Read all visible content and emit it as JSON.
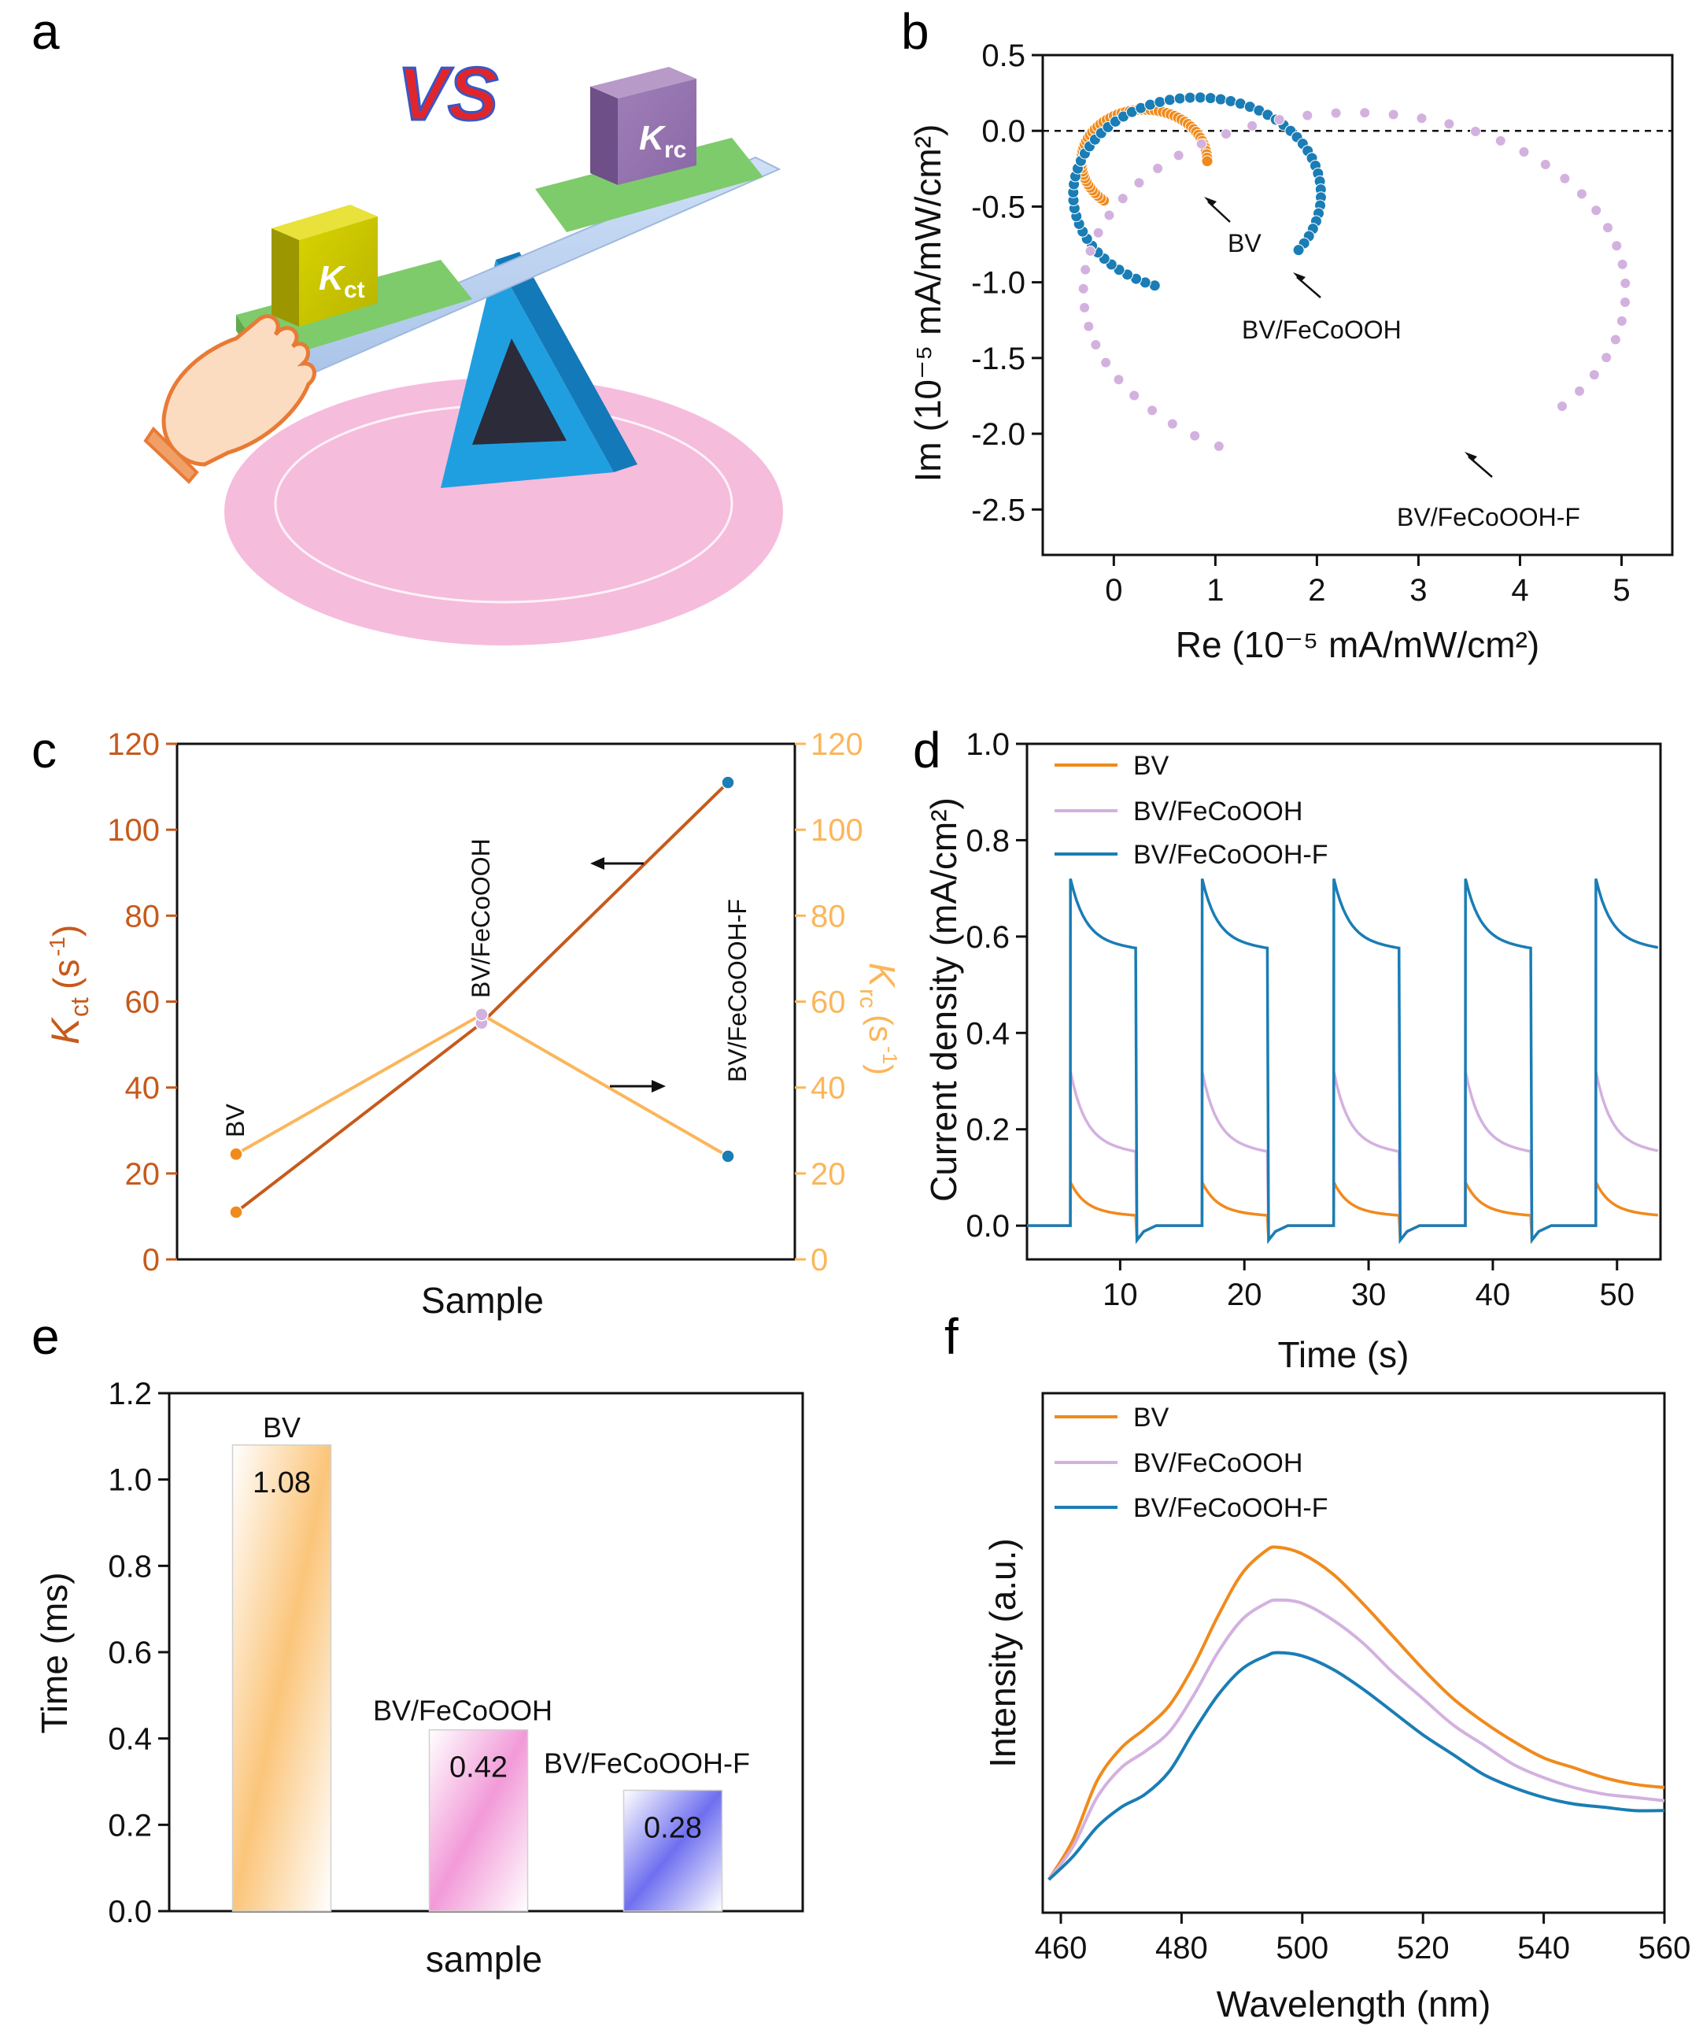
{
  "panels": {
    "a": {
      "label": "a",
      "vs_text": "VS",
      "left_cube": {
        "base": "K",
        "sub": "ct"
      },
      "right_cube": {
        "base": "K",
        "sub": "rc"
      }
    },
    "b": {
      "label": "b"
    },
    "c": {
      "label": "c"
    },
    "d": {
      "label": "d"
    },
    "e": {
      "label": "e"
    },
    "f": {
      "label": "f"
    }
  },
  "colors": {
    "orange": "#f08a1c",
    "lilac": "#d3b1df",
    "blue": "#1a7db5",
    "rust": "#c65a1c",
    "light_orange": "#fbb65a"
  },
  "chart_data": [
    {
      "panel": "b",
      "type": "scatter",
      "xlabel": "Re (10⁻⁵ mA/mW/cm²)",
      "ylabel": "Im (10⁻⁵ mA/mW/cm²)",
      "xlim": [
        -0.7,
        5.5
      ],
      "ylim": [
        -2.8,
        0.5
      ],
      "xticks": [
        0,
        1,
        2,
        3,
        4,
        5
      ],
      "yticks": [
        0.5,
        0.0,
        -0.5,
        -1.0,
        -1.5,
        -2.0,
        -2.5
      ],
      "reference_line_y": 0,
      "series": [
        {
          "name": "BV",
          "color": "#f08a1c",
          "label": "BV",
          "center": [
            0.3,
            -0.2
          ],
          "rx": 0.62,
          "ry": 0.34,
          "start_deg": 130,
          "end_deg": 360
        },
        {
          "name": "BV/FeCoOOH",
          "color": "#1a7db5",
          "label": "BV/FeCoOOH",
          "center": [
            0.82,
            -0.42
          ],
          "rx": 1.22,
          "ry": 0.64,
          "start_deg": 110,
          "end_deg": 395
        },
        {
          "name": "BV/FeCoOOH-F",
          "color": "#d3b1df",
          "label": "BV/FeCoOOH-F",
          "center": [
            2.37,
            -1.06
          ],
          "rx": 2.67,
          "ry": 1.18,
          "start_deg": 120,
          "end_deg": 400
        }
      ],
      "labels": [
        "BV",
        "BV/FeCoOOH",
        "BV/FeCoOOH-F"
      ]
    },
    {
      "panel": "c",
      "type": "line",
      "xlabel": "Sample",
      "ylabel_left": "Kct (s-1)",
      "ylabel_right": "Krc (s-1)",
      "ylim": [
        0,
        120
      ],
      "yticks": [
        0,
        20,
        40,
        60,
        80,
        100,
        120
      ],
      "categories": [
        "BV",
        "BV/FeCoOOH",
        "BV/FeCoOOH-F"
      ],
      "series": [
        {
          "name": "Kct",
          "axis": "left",
          "color": "#c65a1c",
          "values": [
            11,
            55,
            111
          ]
        },
        {
          "name": "Krc",
          "axis": "right",
          "color": "#fbb65a",
          "values": [
            24.5,
            57,
            24
          ]
        }
      ]
    },
    {
      "panel": "d",
      "type": "line",
      "xlabel": "Time (s)",
      "ylabel": "Current density (mA/cm²)",
      "xlim": [
        2.5,
        53.5
      ],
      "ylim": [
        -0.07,
        1.0
      ],
      "xticks": [
        10,
        20,
        30,
        40,
        50
      ],
      "yticks": [
        0.0,
        0.2,
        0.4,
        0.6,
        0.8,
        1.0
      ],
      "on_times_s": [
        6,
        16.6,
        27.2,
        37.8,
        48.3
      ],
      "on_duration_s": 5.3,
      "series": [
        {
          "name": "BV",
          "color": "#f08a1c",
          "peak": 0.09,
          "plateau": 0.028
        },
        {
          "name": "BV/FeCoOOH",
          "color": "#d3b1df",
          "peak": 0.32,
          "plateau": 0.17
        },
        {
          "name": "BV/FeCoOOH-F",
          "color": "#1a7db5",
          "peak": 0.72,
          "plateau": 0.59
        }
      ],
      "legend": [
        "BV",
        "BV/FeCoOOH",
        "BV/FeCoOOH-F"
      ]
    },
    {
      "panel": "e",
      "type": "bar",
      "xlabel": "sample",
      "ylabel": "Time (ms)",
      "ylim": [
        0,
        1.2
      ],
      "yticks": [
        0.0,
        0.2,
        0.4,
        0.6,
        0.8,
        1.0,
        1.2
      ],
      "categories": [
        "BV",
        "BV/FeCoOOH",
        "BV/FeCoOOH-F"
      ],
      "values": [
        1.08,
        0.42,
        0.28
      ],
      "value_labels": [
        "1.08",
        "0.42",
        "0.28"
      ]
    },
    {
      "panel": "f",
      "type": "line",
      "xlabel": "Wavelength (nm)",
      "ylabel": "Intensity (a.u.)",
      "xlim": [
        457,
        560
      ],
      "xticks": [
        460,
        480,
        500,
        520,
        540,
        560
      ],
      "series": [
        {
          "name": "BV",
          "color": "#f08a1c",
          "x": [
            458,
            462,
            466,
            470,
            474,
            478,
            482,
            486,
            490,
            494,
            496,
            500,
            505,
            510,
            515,
            520,
            525,
            530,
            535,
            540,
            545,
            550,
            555,
            560
          ],
          "y": [
            0.0,
            0.12,
            0.3,
            0.4,
            0.46,
            0.53,
            0.65,
            0.8,
            0.93,
            1.0,
            1.01,
            0.99,
            0.93,
            0.84,
            0.74,
            0.64,
            0.55,
            0.48,
            0.42,
            0.37,
            0.34,
            0.31,
            0.29,
            0.28
          ]
        },
        {
          "name": "BV/FeCoOOH",
          "color": "#d3b1df",
          "x": [
            458,
            462,
            466,
            470,
            474,
            478,
            482,
            486,
            490,
            494,
            496,
            500,
            505,
            510,
            515,
            520,
            525,
            530,
            535,
            540,
            545,
            550,
            555,
            560
          ],
          "y": [
            0.0,
            0.1,
            0.25,
            0.34,
            0.39,
            0.45,
            0.56,
            0.69,
            0.79,
            0.84,
            0.85,
            0.84,
            0.79,
            0.72,
            0.63,
            0.55,
            0.47,
            0.41,
            0.35,
            0.31,
            0.28,
            0.26,
            0.25,
            0.24
          ]
        },
        {
          "name": "BV/FeCoOOH-F",
          "color": "#1a7db5",
          "x": [
            458,
            462,
            466,
            470,
            474,
            478,
            482,
            486,
            490,
            494,
            496,
            500,
            505,
            510,
            515,
            520,
            525,
            530,
            535,
            540,
            545,
            550,
            555,
            560
          ],
          "y": [
            0.0,
            0.07,
            0.16,
            0.22,
            0.26,
            0.33,
            0.45,
            0.56,
            0.64,
            0.68,
            0.69,
            0.68,
            0.64,
            0.58,
            0.51,
            0.44,
            0.38,
            0.32,
            0.28,
            0.25,
            0.23,
            0.22,
            0.21,
            0.21
          ]
        }
      ],
      "legend": [
        "BV",
        "BV/FeCoOOH",
        "BV/FeCoOOH-F"
      ]
    }
  ]
}
